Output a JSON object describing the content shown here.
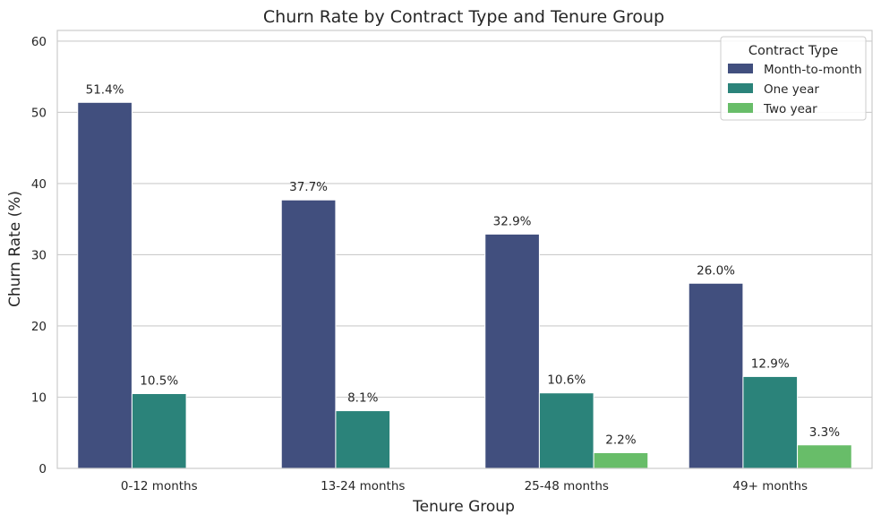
{
  "chart_data": {
    "type": "bar",
    "title": "Churn Rate by Contract Type and Tenure Group",
    "xlabel": "Tenure Group",
    "ylabel": "Churn Rate (%)",
    "ylim": [
      0,
      61.5
    ],
    "yticks": [
      0,
      10,
      20,
      30,
      40,
      50,
      60
    ],
    "grid": true,
    "legend": {
      "title": "Contract Type",
      "placement": "top-right"
    },
    "categories": [
      "0-12 months",
      "13-24 months",
      "25-48 months",
      "49+ months"
    ],
    "series": [
      {
        "name": "Month-to-month",
        "color": "#414f7e",
        "values": [
          51.4,
          37.7,
          32.9,
          26.0
        ],
        "labels": [
          "51.4%",
          "37.7%",
          "32.9%",
          "26.0%"
        ]
      },
      {
        "name": "One year",
        "color": "#2b837a",
        "values": [
          10.5,
          8.1,
          10.6,
          12.9
        ],
        "labels": [
          "10.5%",
          "8.1%",
          "10.6%",
          "12.9%"
        ]
      },
      {
        "name": "Two year",
        "color": "#68bd69",
        "values": [
          0,
          0,
          2.2,
          3.3
        ],
        "labels": [
          "",
          "",
          "2.2%",
          "3.3%"
        ]
      }
    ]
  }
}
